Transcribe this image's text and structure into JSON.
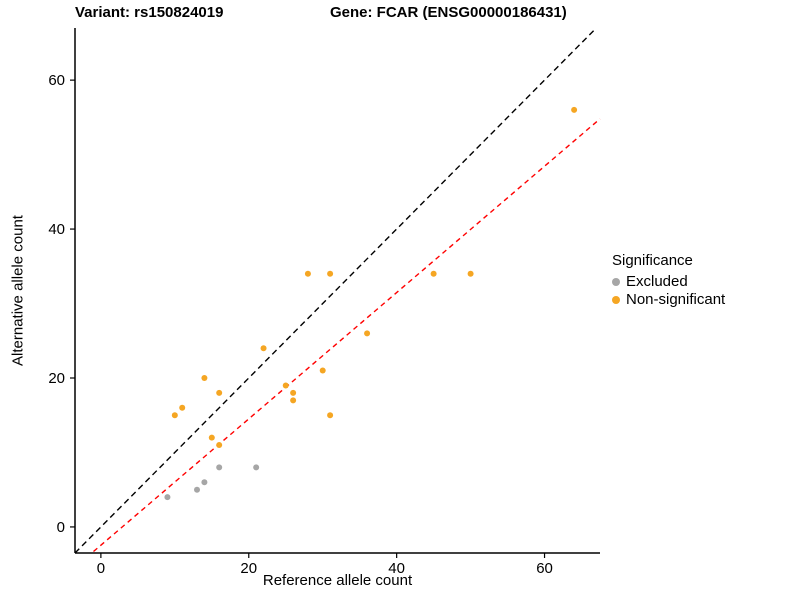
{
  "titles": {
    "variant": "Variant: rs150824019",
    "gene": "Gene: FCAR (ENSG00000186431)"
  },
  "axes": {
    "x_label": "Reference allele count",
    "y_label": "Alternative allele count"
  },
  "legend": {
    "title": "Significance",
    "items": [
      {
        "label": "Excluded",
        "color": "#A6A6A6"
      },
      {
        "label": "Non-significant",
        "color": "#F5A623"
      }
    ]
  },
  "chart_data": {
    "type": "scatter",
    "title": "Variant: rs150824019 — Gene: FCAR (ENSG00000186431)",
    "xlabel": "Reference allele count",
    "ylabel": "Alternative allele count",
    "xlim": [
      -3.5,
      67.5
    ],
    "ylim": [
      -3.5,
      67
    ],
    "xticks": [
      0,
      20,
      40,
      60
    ],
    "yticks": [
      0,
      20,
      40,
      60
    ],
    "grid": false,
    "legend_position": "right",
    "axis_color": "#000000",
    "series": [
      {
        "name": "Excluded",
        "color": "#A6A6A6",
        "points": [
          [
            9,
            4
          ],
          [
            13,
            5
          ],
          [
            14,
            6
          ],
          [
            16,
            8
          ],
          [
            21,
            8
          ]
        ]
      },
      {
        "name": "Non-significant",
        "color": "#F5A623",
        "points": [
          [
            10,
            15
          ],
          [
            11,
            16
          ],
          [
            14,
            20
          ],
          [
            16,
            18
          ],
          [
            15,
            12
          ],
          [
            16,
            11
          ],
          [
            22,
            24
          ],
          [
            25,
            19
          ],
          [
            26,
            18
          ],
          [
            26,
            17
          ],
          [
            28,
            34
          ],
          [
            30,
            21
          ],
          [
            31,
            34
          ],
          [
            31,
            15
          ],
          [
            36,
            26
          ],
          [
            45,
            34
          ],
          [
            50,
            34
          ],
          [
            64,
            56
          ]
        ]
      }
    ],
    "lines": [
      {
        "name": "identity",
        "color": "#000000",
        "dash": "6,4",
        "points": [
          [
            -3.5,
            -3.5
          ],
          [
            67,
            67
          ]
        ]
      },
      {
        "name": "regression",
        "color": "#FF0000",
        "dash": "5,4",
        "points": [
          [
            -1,
            -3.3
          ],
          [
            67.5,
            54.8
          ]
        ]
      }
    ]
  }
}
